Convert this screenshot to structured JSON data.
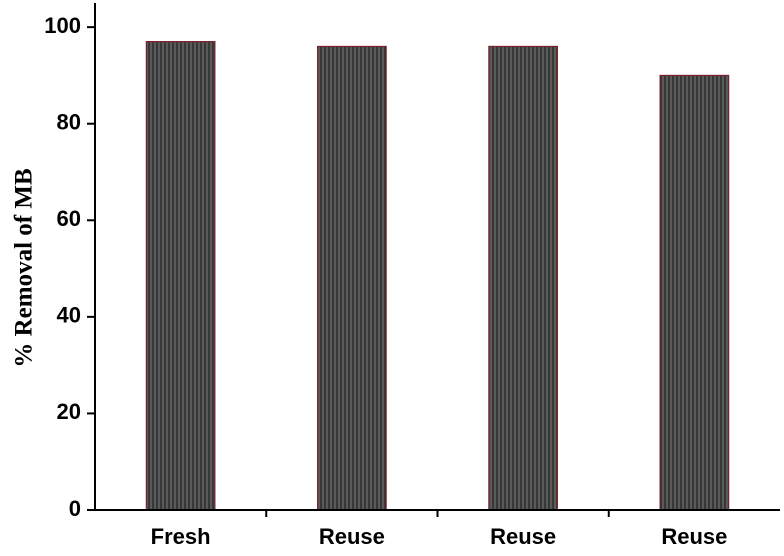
{
  "chart_data": {
    "type": "bar",
    "ylabel": "% Removal of MB",
    "categories": [
      "Fresh",
      "Reuse",
      "Reuse",
      "Reuse"
    ],
    "values": [
      97,
      96,
      96,
      90
    ],
    "color": "#5a5a5a",
    "edgecolor": "#7a1f2b",
    "ylim": [
      0,
      105
    ],
    "yticks": [
      0,
      20,
      40,
      60,
      80,
      100
    ],
    "grid": false
  }
}
